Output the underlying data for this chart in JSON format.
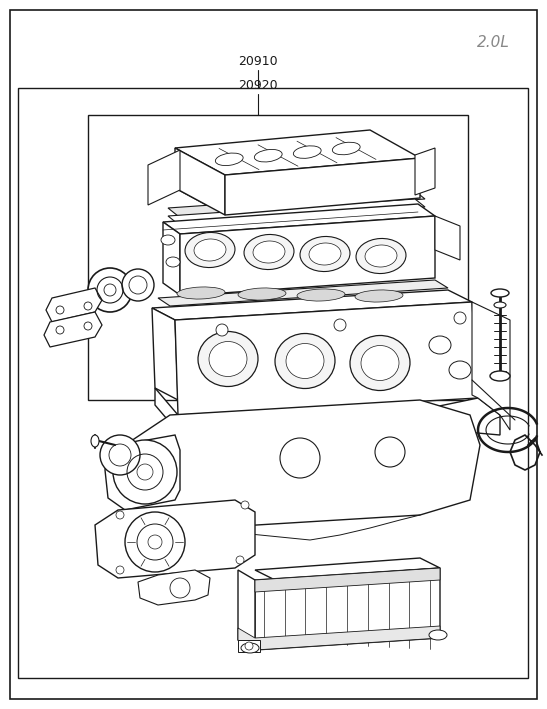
{
  "title": "2.0L",
  "label_20910": "20910",
  "label_20920": "20920",
  "bg_color": "#ffffff",
  "line_color": "#1a1a1a",
  "text_color": "#888888",
  "label_color": "#1a1a1a",
  "figsize": [
    5.47,
    7.09
  ],
  "dpi": 100
}
